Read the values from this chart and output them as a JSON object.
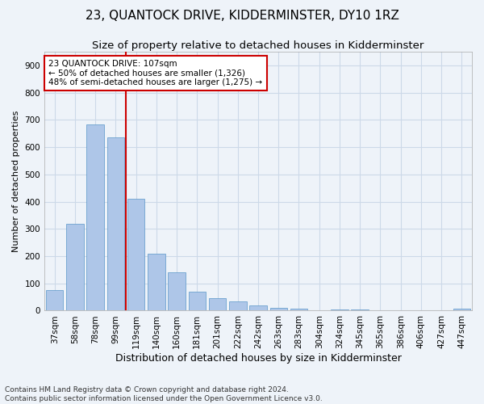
{
  "title": "23, QUANTOCK DRIVE, KIDDERMINSTER, DY10 1RZ",
  "subtitle": "Size of property relative to detached houses in Kidderminster",
  "xlabel": "Distribution of detached houses by size in Kidderminster",
  "ylabel": "Number of detached properties",
  "categories": [
    "37sqm",
    "58sqm",
    "78sqm",
    "99sqm",
    "119sqm",
    "140sqm",
    "160sqm",
    "181sqm",
    "201sqm",
    "222sqm",
    "242sqm",
    "263sqm",
    "283sqm",
    "304sqm",
    "324sqm",
    "345sqm",
    "365sqm",
    "386sqm",
    "406sqm",
    "427sqm",
    "447sqm"
  ],
  "values": [
    75,
    320,
    685,
    635,
    410,
    210,
    140,
    70,
    45,
    33,
    20,
    10,
    8,
    0,
    5,
    5,
    0,
    0,
    0,
    0,
    7
  ],
  "bar_color": "#aec6e8",
  "bar_edge_color": "#5a96c8",
  "grid_color": "#ccd9e8",
  "bg_color": "#eef3f9",
  "vline_x_index": 3,
  "vline_color": "#cc0000",
  "annotation_line1": "23 QUANTOCK DRIVE: 107sqm",
  "annotation_line2": "← 50% of detached houses are smaller (1,326)",
  "annotation_line3": "48% of semi-detached houses are larger (1,275) →",
  "annotation_box_color": "#cc0000",
  "annotation_fill": "#ffffff",
  "ylim": [
    0,
    950
  ],
  "yticks": [
    0,
    100,
    200,
    300,
    400,
    500,
    600,
    700,
    800,
    900
  ],
  "footnote": "Contains HM Land Registry data © Crown copyright and database right 2024.\nContains public sector information licensed under the Open Government Licence v3.0.",
  "title_fontsize": 11,
  "subtitle_fontsize": 9.5,
  "xlabel_fontsize": 9,
  "ylabel_fontsize": 8,
  "tick_fontsize": 7.5,
  "annotation_fontsize": 7.5,
  "footnote_fontsize": 6.5
}
